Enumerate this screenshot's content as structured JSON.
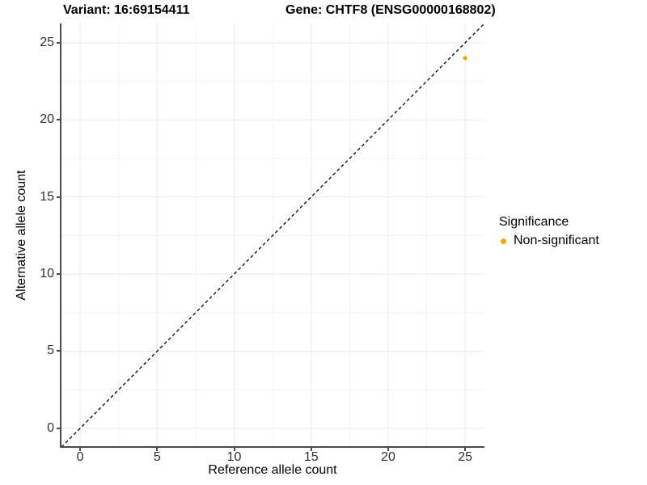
{
  "title": {
    "variant": "Variant: 16:69154411",
    "gene": "Gene: CHTF8 (ENSG00000168802)"
  },
  "axes": {
    "x": {
      "label": "Reference allele count"
    },
    "y": {
      "label": "Alternative allele count"
    }
  },
  "legend": {
    "title": "Significance",
    "items": [
      {
        "label": "Non-significant",
        "color": "#FFA500"
      }
    ]
  },
  "colors": {
    "point": "#FFA500",
    "grid_major": "#EBEBEB",
    "grid_minor": "#F3F3F3",
    "axis_line": "#4a4a4a",
    "reference_line": "#000000",
    "tick_text": "#303030"
  },
  "chart_data": {
    "type": "scatter",
    "title": "Variant: 16:69154411    Gene: CHTF8 (ENSG00000168802)",
    "xlabel": "Reference allele count",
    "ylabel": "Alternative allele count",
    "xlim": [
      -1.21,
      26.25
    ],
    "ylim": [
      -1.21,
      26.25
    ],
    "x_ticks": [
      0,
      5,
      10,
      15,
      20,
      25
    ],
    "y_ticks": [
      0,
      5,
      10,
      15,
      20,
      25
    ],
    "grid": true,
    "legend_position": "right",
    "aspect": "equal",
    "reference_line": {
      "kind": "identity",
      "style": "dashed",
      "x": [
        -1.21,
        26.25
      ],
      "y": [
        -1.21,
        26.25
      ]
    },
    "series": [
      {
        "name": "Non-significant",
        "color": "#FFA500",
        "point_radius": 2.7,
        "points": [
          {
            "x": 25,
            "y": 24
          }
        ]
      }
    ]
  }
}
